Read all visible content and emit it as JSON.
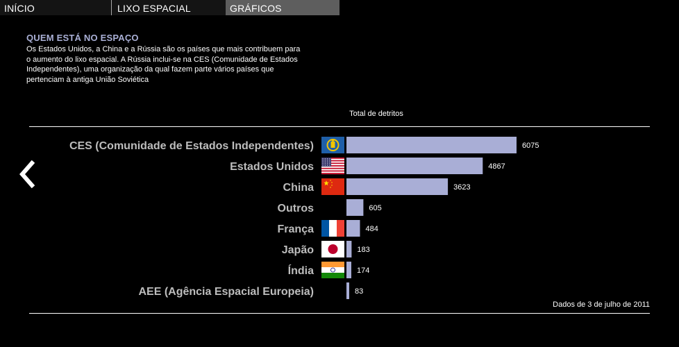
{
  "nav": {
    "items": [
      {
        "label": "INÍCIO"
      },
      {
        "label": "LIXO ESPACIAL"
      },
      {
        "label": "GRÁFICOS"
      }
    ],
    "active_index": 2
  },
  "intro": {
    "title": "QUEM ESTÁ NO ESPAÇO",
    "text": "Os Estados Unidos, a China e a Rússia são os países que mais contribuem para o aumento do lixo espacial. A Rússia inclui-se na CES (Comunidade de Estados Independentes), uma organização da qual fazem parte vários países que pertenciam à antiga União Soviética"
  },
  "back_icon": "chevron-left-icon",
  "colors": {
    "bar": "#a9aed6",
    "title": "#aab0d6",
    "active_tab": "#5e5e5e"
  },
  "chart_data": {
    "type": "bar",
    "orientation": "horizontal",
    "title": "Total de detritos",
    "categories": [
      "CES (Comunidade de Estados Independentes)",
      "Estados Unidos",
      "China",
      "Outros",
      "França",
      "Japão",
      "Índia",
      "AEE (Agência Espacial Europeia)"
    ],
    "values": [
      6075,
      4867,
      3623,
      605,
      484,
      183,
      174,
      83
    ],
    "flags": [
      "ces-flag-icon",
      "usa-flag-icon",
      "china-flag-icon",
      "",
      "france-flag-icon",
      "japan-flag-icon",
      "india-flag-icon",
      ""
    ],
    "note": "Dados de 3 de julho de 2011",
    "xlim": [
      0,
      6075
    ],
    "grid": false,
    "legend": "none"
  }
}
